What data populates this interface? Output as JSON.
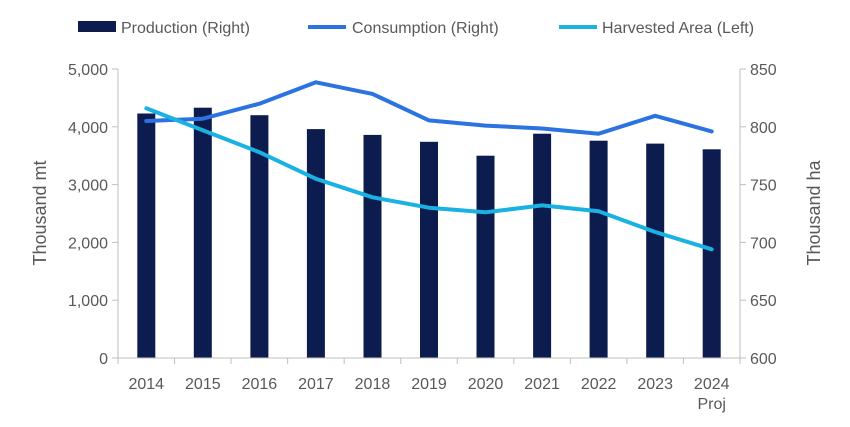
{
  "chart_data": {
    "type": "bar",
    "categories": [
      "2014",
      "2015",
      "2016",
      "2017",
      "2018",
      "2019",
      "2020",
      "2021",
      "2022",
      "2023",
      "2024"
    ],
    "category_sublabels": [
      "",
      "",
      "",
      "",
      "",
      "",
      "",
      "",
      "",
      "",
      "Proj"
    ],
    "left_axis": {
      "label": "Thousand mt",
      "ylim": [
        0,
        5000
      ],
      "ticks": [
        "0",
        "1,000",
        "2,000",
        "3,000",
        "4,000",
        "5,000"
      ],
      "tick_values": [
        0,
        1000,
        2000,
        3000,
        4000,
        5000
      ]
    },
    "right_axis": {
      "label": "Thousand ha",
      "ylim": [
        600,
        850
      ],
      "ticks": [
        "600",
        "650",
        "700",
        "750",
        "800",
        "850"
      ],
      "tick_values": [
        600,
        650,
        700,
        750,
        800,
        850
      ]
    },
    "series": [
      {
        "name": "Production (Right)",
        "type": "bar",
        "axis": "left",
        "color": "#0c1c4e",
        "values": [
          4230,
          4330,
          4200,
          3960,
          3860,
          3740,
          3500,
          3880,
          3760,
          3710,
          3610
        ]
      },
      {
        "name": "Consumption (Right)",
        "type": "line",
        "axis": "left",
        "color": "#2b73e0",
        "values": [
          4100,
          4140,
          4400,
          4770,
          4570,
          4110,
          4020,
          3970,
          3880,
          4190,
          3920
        ]
      },
      {
        "name": "Harvested Area (Left)",
        "type": "line",
        "axis": "right",
        "color": "#1ab2e2",
        "values": [
          816,
          797,
          778,
          755,
          739,
          730,
          726,
          732,
          727,
          709,
          694
        ]
      }
    ],
    "legend_position": "top",
    "grid": false
  }
}
